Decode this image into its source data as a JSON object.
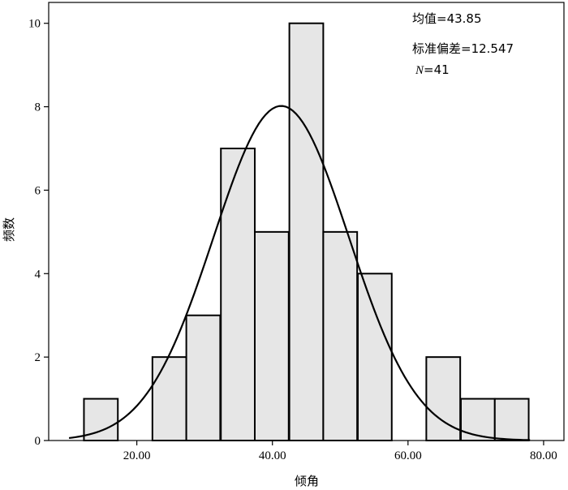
{
  "chart_data": {
    "type": "bar",
    "subtype": "histogram",
    "xlabel": "倾角",
    "ylabel": "频数",
    "xlim": [
      7,
      83
    ],
    "ylim": [
      0,
      10.5
    ],
    "bin_width": 5,
    "x_ticks": [
      20,
      40,
      60,
      80
    ],
    "x_tick_labels": [
      "20.00",
      "40.00",
      "60.00",
      "80.00"
    ],
    "y_ticks": [
      0,
      2,
      4,
      6,
      8,
      10
    ],
    "y_tick_labels": [
      "0",
      "2",
      "4",
      "6",
      "8",
      "10"
    ],
    "bins": [
      {
        "start": 12.2,
        "count": 1
      },
      {
        "start": 22.3,
        "count": 2
      },
      {
        "start": 27.3,
        "count": 3
      },
      {
        "start": 32.4,
        "count": 7
      },
      {
        "start": 37.4,
        "count": 5
      },
      {
        "start": 42.5,
        "count": 10
      },
      {
        "start": 47.5,
        "count": 5
      },
      {
        "start": 52.6,
        "count": 4
      },
      {
        "start": 62.7,
        "count": 2
      },
      {
        "start": 67.8,
        "count": 1
      },
      {
        "start": 72.8,
        "count": 1
      }
    ],
    "bar_fill": "#e6e6e6",
    "bar_stroke": "#000000",
    "curve": {
      "type": "smoothed_density",
      "peak_x": 41.3,
      "peak_y": 8.02,
      "color": "#000000"
    },
    "grid": false,
    "stats": {
      "mean_label": "均值=43.85",
      "std_label": "标准偏差=12.547",
      "n_symbol": "N",
      "n_value": "=41"
    }
  }
}
